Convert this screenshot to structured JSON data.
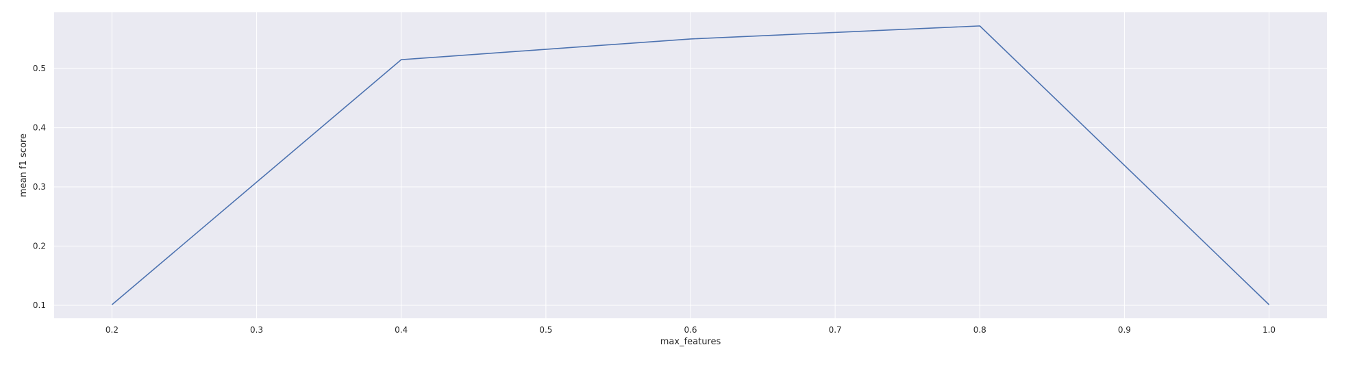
{
  "chart_data": {
    "type": "line",
    "title": "",
    "xlabel": "max_features",
    "ylabel": "mean f1 score",
    "x": [
      0.2,
      0.4,
      0.6,
      0.8,
      1.0
    ],
    "series": [
      {
        "values": [
          0.101,
          0.515,
          0.55,
          0.572,
          0.101
        ]
      }
    ],
    "xlim": [
      0.16,
      1.04
    ],
    "ylim": [
      0.078,
      0.595
    ],
    "xticks": [
      "0.2",
      "0.3",
      "0.4",
      "0.5",
      "0.6",
      "0.7",
      "0.8",
      "0.9",
      "1.0"
    ],
    "yticks": [
      "0.1",
      "0.2",
      "0.3",
      "0.4",
      "0.5"
    ],
    "grid": true,
    "line_color": "#4c72b0",
    "background_color": "#eaeaf2",
    "grid_color": "#ffffff"
  }
}
